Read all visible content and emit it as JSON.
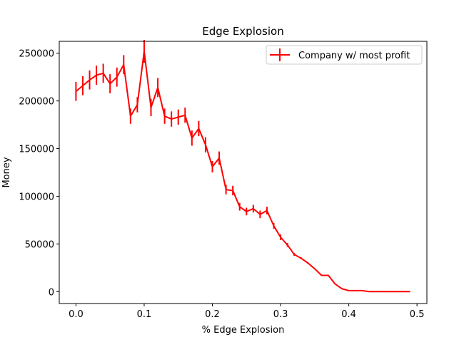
{
  "chart_data": {
    "type": "line",
    "title": "Edge Explosion",
    "xlabel": "% Edge Explosion",
    "ylabel": "Money",
    "xlim": [
      -0.0245,
      0.5145
    ],
    "ylim": [
      -12500,
      262500
    ],
    "x_ticks": [
      0.0,
      0.1,
      0.2,
      0.3,
      0.4,
      0.5
    ],
    "x_tick_labels": [
      "0.0",
      "0.1",
      "0.2",
      "0.3",
      "0.4",
      "0.5"
    ],
    "y_ticks": [
      0,
      50000,
      100000,
      150000,
      200000,
      250000
    ],
    "y_tick_labels": [
      "0",
      "50000",
      "100000",
      "150000",
      "200000",
      "250000"
    ],
    "grid": false,
    "legend_position": "top-right",
    "series": [
      {
        "name": "Company w/ most profit",
        "color": "#ff0000",
        "x": [
          0.0,
          0.01,
          0.02,
          0.03,
          0.04,
          0.05,
          0.06,
          0.07,
          0.08,
          0.09,
          0.1,
          0.11,
          0.12,
          0.13,
          0.14,
          0.15,
          0.16,
          0.17,
          0.18,
          0.19,
          0.2,
          0.21,
          0.22,
          0.23,
          0.24,
          0.25,
          0.26,
          0.27,
          0.28,
          0.29,
          0.3,
          0.31,
          0.32,
          0.33,
          0.34,
          0.35,
          0.36,
          0.37,
          0.38,
          0.39,
          0.4,
          0.41,
          0.42,
          0.43,
          0.44,
          0.45,
          0.46,
          0.47,
          0.48,
          0.49
        ],
        "y": [
          210000,
          216000,
          222000,
          227000,
          229000,
          218000,
          225000,
          238000,
          184000,
          196000,
          252000,
          193000,
          214000,
          184000,
          181000,
          183000,
          185000,
          161000,
          171000,
          154000,
          131000,
          140000,
          107000,
          106000,
          89000,
          84000,
          87000,
          81000,
          85000,
          69000,
          57000,
          49000,
          39000,
          35000,
          30000,
          24000,
          17000,
          17000,
          8000,
          3000,
          1000,
          1000,
          1000,
          0,
          0,
          0,
          0,
          0,
          0,
          0
        ],
        "error": [
          10000,
          10000,
          10000,
          10000,
          10000,
          10000,
          10000,
          10000,
          8000,
          8000,
          12000,
          9000,
          10000,
          8000,
          8000,
          8000,
          8000,
          8000,
          8000,
          8000,
          6000,
          7000,
          5000,
          5000,
          4000,
          4000,
          4000,
          4000,
          4000,
          3000,
          3000,
          2000,
          1500,
          1000,
          800,
          600,
          500,
          500,
          400,
          300,
          200,
          200,
          200,
          0,
          0,
          0,
          0,
          0,
          0,
          0
        ]
      }
    ]
  }
}
